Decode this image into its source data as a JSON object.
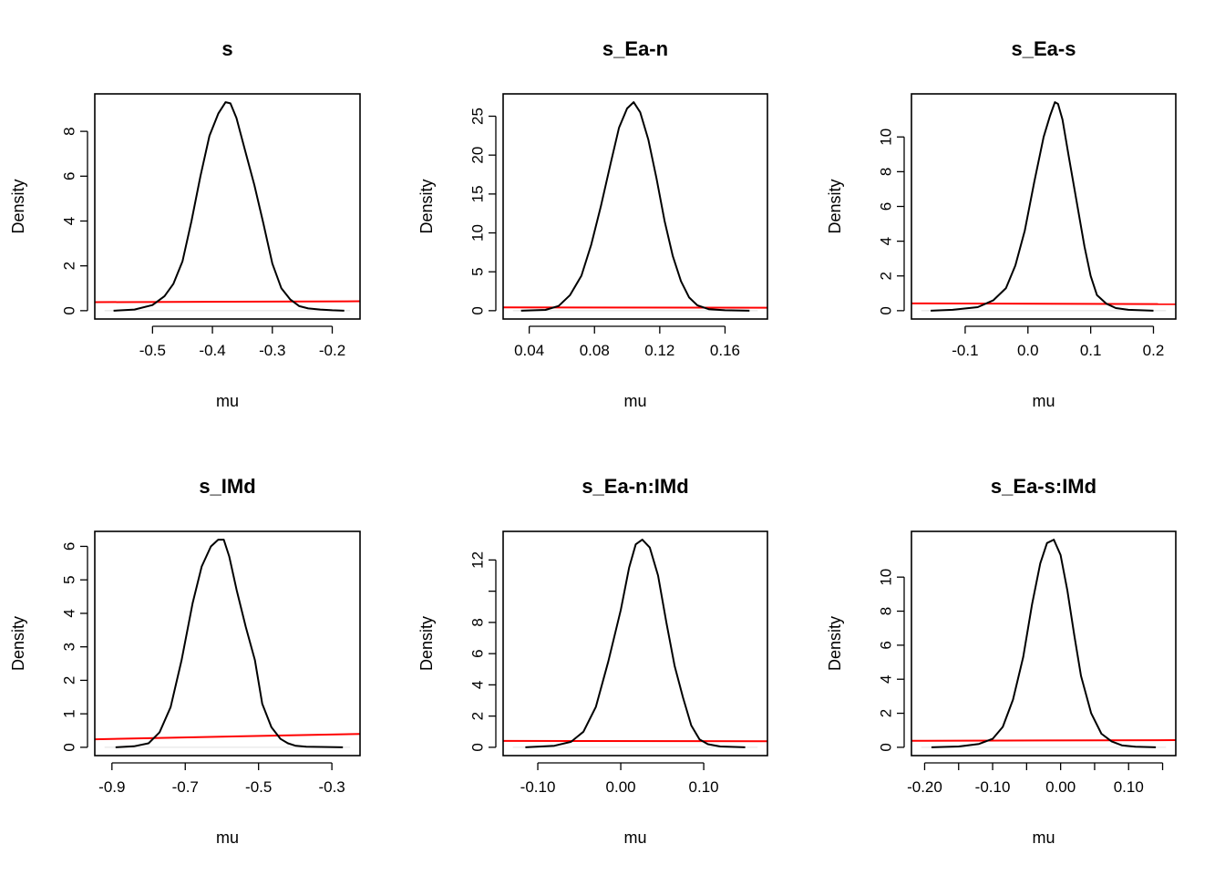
{
  "chart_data": [
    {
      "type": "line",
      "title": "s",
      "xlabel": "mu",
      "ylabel": "Density",
      "xlim": [
        -0.58,
        -0.17
      ],
      "ylim": [
        0,
        9.3
      ],
      "x_ticks": [
        -0.5,
        -0.4,
        -0.3,
        -0.2
      ],
      "x_tick_labels": [
        "-0.5",
        "-0.4",
        "-0.3",
        "-0.2"
      ],
      "y_ticks": [
        0,
        2,
        4,
        6,
        8
      ],
      "y_tick_labels": [
        "0",
        "2",
        "4",
        "6",
        "8"
      ],
      "series": [
        {
          "color": "#000000",
          "x": [
            -0.565,
            -0.53,
            -0.5,
            -0.48,
            -0.465,
            -0.45,
            -0.435,
            -0.42,
            -0.405,
            -0.39,
            -0.378,
            -0.37,
            -0.36,
            -0.345,
            -0.33,
            -0.315,
            -0.3,
            -0.285,
            -0.27,
            -0.255,
            -0.24,
            -0.22,
            -0.2,
            -0.18
          ],
          "y": [
            0.0,
            0.05,
            0.25,
            0.65,
            1.2,
            2.2,
            4.0,
            6.0,
            7.8,
            8.8,
            9.3,
            9.25,
            8.6,
            7.1,
            5.6,
            3.9,
            2.1,
            1.0,
            0.5,
            0.2,
            0.1,
            0.05,
            0.02,
            0.0
          ]
        }
      ],
      "prior_line": {
        "color": "#ff0000",
        "x": [
          -0.585,
          -0.16
        ],
        "y": [
          0.38,
          0.42
        ]
      }
    },
    {
      "type": "line",
      "title": "s_Ea-n",
      "xlabel": "mu",
      "ylabel": "Density",
      "xlim": [
        0.03,
        0.18
      ],
      "ylim": [
        0,
        26.8
      ],
      "x_ticks": [
        0.04,
        0.08,
        0.12,
        0.16
      ],
      "x_tick_labels": [
        "0.04",
        "0.08",
        "0.12",
        "0.16"
      ],
      "y_ticks": [
        0,
        5,
        10,
        15,
        20,
        25
      ],
      "y_tick_labels": [
        "0",
        "5",
        "10",
        "15",
        "20",
        "25"
      ],
      "series": [
        {
          "color": "#000000",
          "x": [
            0.035,
            0.05,
            0.058,
            0.065,
            0.072,
            0.078,
            0.084,
            0.09,
            0.095,
            0.1,
            0.104,
            0.108,
            0.113,
            0.118,
            0.123,
            0.128,
            0.133,
            0.138,
            0.143,
            0.15,
            0.16,
            0.175
          ],
          "y": [
            0.0,
            0.1,
            0.6,
            2.0,
            4.5,
            8.5,
            13.5,
            19.0,
            23.5,
            26.0,
            26.8,
            25.5,
            22.0,
            17.0,
            11.5,
            7.0,
            3.8,
            1.7,
            0.7,
            0.2,
            0.05,
            0.0
          ]
        }
      ],
      "prior_line": {
        "color": "#ff0000",
        "x": [
          0.026,
          0.18
        ],
        "y": [
          0.42,
          0.38
        ]
      }
    },
    {
      "type": "line",
      "title": "s_Ea-s",
      "xlabel": "mu",
      "ylabel": "Density",
      "xlim": [
        -0.17,
        0.22
      ],
      "ylim": [
        0,
        12
      ],
      "x_ticks": [
        -0.1,
        0.0,
        0.1,
        0.2
      ],
      "x_tick_labels": [
        "-0.1",
        "0.0",
        "0.1",
        "0.2"
      ],
      "y_ticks": [
        0,
        2,
        4,
        6,
        8,
        10
      ],
      "y_tick_labels": [
        "0",
        "2",
        "4",
        "6",
        "8",
        "10"
      ],
      "series": [
        {
          "color": "#000000",
          "x": [
            -0.155,
            -0.12,
            -0.08,
            -0.055,
            -0.035,
            -0.02,
            -0.005,
            0.01,
            0.025,
            0.035,
            0.043,
            0.048,
            0.055,
            0.065,
            0.078,
            0.09,
            0.1,
            0.11,
            0.125,
            0.14,
            0.16,
            0.2
          ],
          "y": [
            0.0,
            0.05,
            0.2,
            0.6,
            1.3,
            2.6,
            4.6,
            7.4,
            10.0,
            11.2,
            12.0,
            11.9,
            11.0,
            8.9,
            6.2,
            3.7,
            2.0,
            0.9,
            0.4,
            0.15,
            0.05,
            0.0
          ]
        }
      ],
      "prior_line": {
        "color": "#ff0000",
        "x": [
          -0.175,
          0.225
        ],
        "y": [
          0.42,
          0.38
        ]
      }
    },
    {
      "type": "line",
      "title": "s_IMd",
      "xlabel": "mu",
      "ylabel": "Density",
      "xlim": [
        -0.92,
        -0.25
      ],
      "ylim": [
        0,
        6.2
      ],
      "x_ticks": [
        -0.9,
        -0.7,
        -0.5,
        -0.3
      ],
      "x_tick_labels": [
        "-0.9",
        "-0.7",
        "-0.5",
        "-0.3"
      ],
      "y_ticks": [
        0,
        1,
        2,
        3,
        4,
        5,
        6
      ],
      "y_tick_labels": [
        "0",
        "1",
        "2",
        "3",
        "4",
        "5",
        "6"
      ],
      "series": [
        {
          "color": "#000000",
          "x": [
            -0.89,
            -0.84,
            -0.8,
            -0.77,
            -0.74,
            -0.71,
            -0.68,
            -0.655,
            -0.63,
            -0.61,
            -0.595,
            -0.58,
            -0.56,
            -0.535,
            -0.51,
            -0.49,
            -0.465,
            -0.44,
            -0.42,
            -0.4,
            -0.37,
            -0.33,
            -0.27
          ],
          "y": [
            0.0,
            0.03,
            0.12,
            0.45,
            1.2,
            2.6,
            4.3,
            5.4,
            6.0,
            6.2,
            6.2,
            5.7,
            4.7,
            3.6,
            2.6,
            1.3,
            0.6,
            0.25,
            0.12,
            0.05,
            0.02,
            0.01,
            0.0
          ]
        }
      ],
      "prior_line": {
        "color": "#ff0000",
        "x": [
          -0.925,
          -0.245
        ],
        "y": [
          0.24,
          0.4
        ]
      }
    },
    {
      "type": "line",
      "title": "s_Ea-n:IMd",
      "xlabel": "mu",
      "ylabel": "Density",
      "xlim": [
        -0.13,
        0.165
      ],
      "ylim": [
        0,
        13.3
      ],
      "x_ticks": [
        -0.1,
        0.0,
        0.1
      ],
      "x_tick_labels": [
        "-0.10",
        "0.00",
        "0.10"
      ],
      "y_ticks": [
        0,
        2,
        4,
        6,
        8,
        10,
        12
      ],
      "y_tick_labels": [
        "0",
        "2",
        "4",
        "6",
        "8",
        "",
        "12"
      ],
      "series": [
        {
          "color": "#000000",
          "x": [
            -0.115,
            -0.08,
            -0.06,
            -0.045,
            -0.03,
            -0.015,
            0.0,
            0.01,
            0.018,
            0.026,
            0.035,
            0.045,
            0.055,
            0.065,
            0.075,
            0.085,
            0.095,
            0.105,
            0.12,
            0.15
          ],
          "y": [
            0.0,
            0.1,
            0.35,
            1.0,
            2.6,
            5.5,
            8.8,
            11.5,
            13.0,
            13.3,
            12.8,
            11.0,
            8.0,
            5.2,
            3.2,
            1.4,
            0.5,
            0.2,
            0.05,
            0.0
          ]
        }
      ],
      "prior_line": {
        "color": "#ff0000",
        "x": [
          -0.133,
          0.168
        ],
        "y": [
          0.41,
          0.39
        ]
      }
    },
    {
      "type": "line",
      "title": "s_Ea-s:IMd",
      "xlabel": "mu",
      "ylabel": "Density",
      "xlim": [
        -0.205,
        0.155
      ],
      "ylim": [
        0,
        12.2
      ],
      "x_ticks": [
        -0.2,
        -0.15,
        -0.1,
        -0.05,
        0.0,
        0.05,
        0.1,
        0.15
      ],
      "x_tick_labels": [
        "-0.20",
        "",
        "-0.10",
        "",
        "0.00",
        "",
        "0.10",
        ""
      ],
      "y_ticks": [
        0,
        2,
        4,
        6,
        8,
        10
      ],
      "y_tick_labels": [
        "0",
        "2",
        "4",
        "6",
        "8",
        "10"
      ],
      "series": [
        {
          "color": "#000000",
          "x": [
            -0.19,
            -0.15,
            -0.12,
            -0.1,
            -0.085,
            -0.07,
            -0.055,
            -0.042,
            -0.03,
            -0.02,
            -0.01,
            0.0,
            0.01,
            0.02,
            0.03,
            0.045,
            0.06,
            0.075,
            0.09,
            0.11,
            0.14
          ],
          "y": [
            0.0,
            0.05,
            0.2,
            0.5,
            1.2,
            2.8,
            5.3,
            8.4,
            10.8,
            12.0,
            12.2,
            11.3,
            9.2,
            6.6,
            4.2,
            2.0,
            0.8,
            0.35,
            0.12,
            0.04,
            0.0
          ]
        }
      ],
      "prior_line": {
        "color": "#ff0000",
        "x": [
          -0.21,
          0.158
        ],
        "y": [
          0.38,
          0.42
        ]
      }
    }
  ]
}
